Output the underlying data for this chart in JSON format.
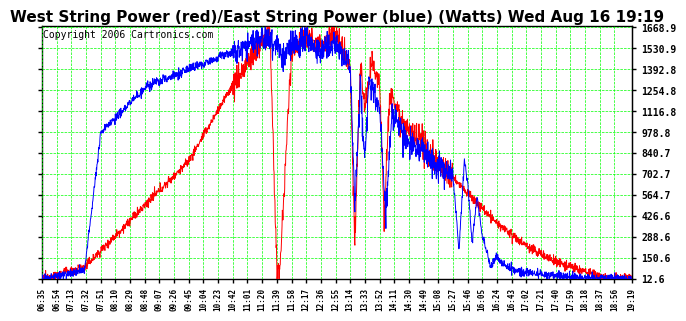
{
  "title": "West String Power (red)/East String Power (blue) (Watts) Wed Aug 16 19:19",
  "copyright": "Copyright 2006 Cartronics.com",
  "y_ticks": [
    12.6,
    150.6,
    288.6,
    426.6,
    564.7,
    702.7,
    840.7,
    978.8,
    1116.8,
    1254.8,
    1392.8,
    1530.9,
    1668.9
  ],
  "y_min": 12.6,
  "y_max": 1668.9,
  "x_labels": [
    "06:35",
    "06:54",
    "07:13",
    "07:32",
    "07:51",
    "08:10",
    "08:29",
    "08:48",
    "09:07",
    "09:26",
    "09:45",
    "10:04",
    "10:23",
    "10:42",
    "11:01",
    "11:20",
    "11:39",
    "11:58",
    "12:17",
    "12:36",
    "12:55",
    "13:14",
    "13:33",
    "13:52",
    "14:11",
    "14:30",
    "14:49",
    "15:08",
    "15:27",
    "15:46",
    "16:05",
    "16:24",
    "16:43",
    "17:02",
    "17:21",
    "17:40",
    "17:59",
    "18:18",
    "18:37",
    "18:56",
    "19:19"
  ],
  "background_color": "#ffffff",
  "grid_color": "#00ff00",
  "title_fontsize": 11,
  "title_color": "#000000",
  "red_color": "#ff0000",
  "blue_color": "#0000ff",
  "tick_label_color": "#000000",
  "copyright_color": "#000000",
  "copyright_fontsize": 7
}
